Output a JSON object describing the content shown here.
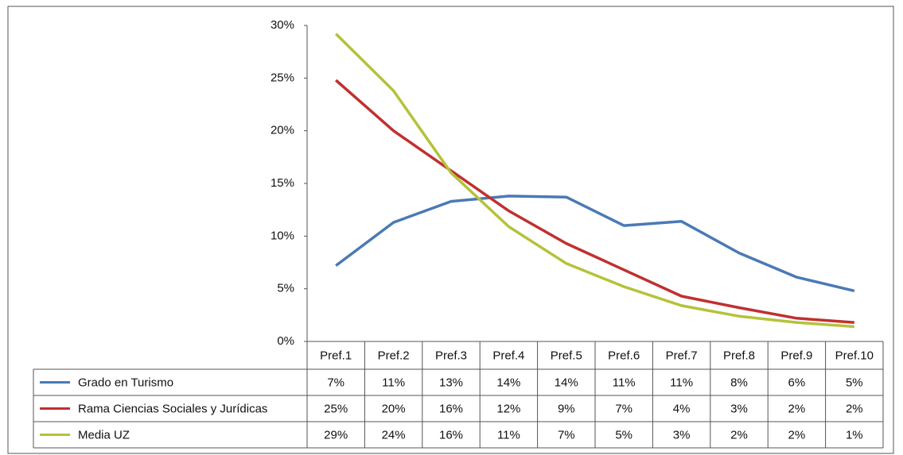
{
  "chart_data": {
    "type": "line",
    "categories": [
      "Pref.1",
      "Pref.2",
      "Pref.3",
      "Pref.4",
      "Pref.5",
      "Pref.6",
      "Pref.7",
      "Pref.8",
      "Pref.9",
      "Pref.10"
    ],
    "ylim": [
      0,
      30
    ],
    "yticks": [
      {
        "value": 0,
        "label": "0%"
      },
      {
        "value": 5,
        "label": "5%"
      },
      {
        "value": 10,
        "label": "10%"
      },
      {
        "value": 15,
        "label": "15%"
      },
      {
        "value": 20,
        "label": "20%"
      },
      {
        "value": 25,
        "label": "25%"
      },
      {
        "value": 30,
        "label": "30%"
      }
    ],
    "series": [
      {
        "name": "Grado en Turismo",
        "color": "#4a7ab5",
        "values": [
          7.2,
          11.3,
          13.3,
          13.8,
          13.7,
          11.0,
          11.4,
          8.4,
          6.1,
          4.8
        ],
        "value_labels": [
          "7%",
          "11%",
          "13%",
          "14%",
          "14%",
          "11%",
          "11%",
          "8%",
          "6%",
          "5%"
        ]
      },
      {
        "name": "Rama  Ciencias Sociales y Jurídicas",
        "color": "#c0302f",
        "values": [
          24.8,
          20.0,
          16.2,
          12.4,
          9.3,
          6.8,
          4.3,
          3.2,
          2.2,
          1.8
        ],
        "value_labels": [
          "25%",
          "20%",
          "16%",
          "12%",
          "9%",
          "7%",
          "4%",
          "3%",
          "2%",
          "2%"
        ]
      },
      {
        "name": "Media UZ",
        "color": "#b5c23a",
        "values": [
          29.2,
          23.8,
          16.0,
          10.9,
          7.4,
          5.2,
          3.4,
          2.4,
          1.8,
          1.4
        ],
        "value_labels": [
          "29%",
          "24%",
          "16%",
          "11%",
          "7%",
          "5%",
          "3%",
          "2%",
          "2%",
          "1%"
        ]
      }
    ]
  }
}
